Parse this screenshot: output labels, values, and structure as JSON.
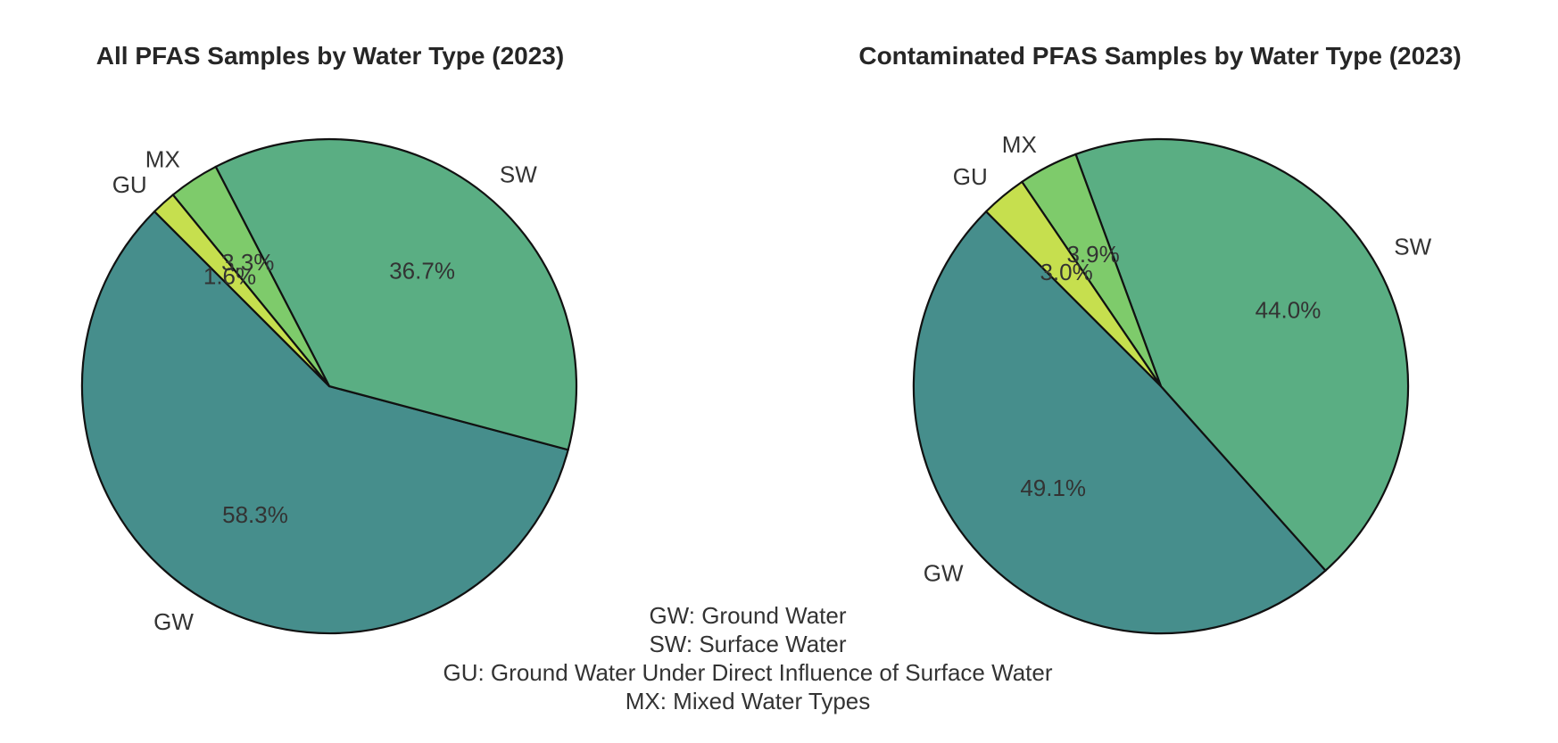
{
  "chart_data": [
    {
      "type": "pie",
      "title": "All PFAS Samples by Water Type (2023)",
      "start_angle": 135,
      "slices": [
        {
          "label": "GW",
          "value": 58.3,
          "pct_label": "58.3%",
          "color": "#468e8c"
        },
        {
          "label": "SW",
          "value": 36.7,
          "pct_label": "36.7%",
          "color": "#5aae83"
        },
        {
          "label": "MX",
          "value": 3.3,
          "pct_label": "3.3%",
          "color": "#7ecb6b"
        },
        {
          "label": "GU",
          "value": 1.6,
          "pct_label": "1.6%",
          "color": "#c6df4e"
        }
      ]
    },
    {
      "type": "pie",
      "title": "Contaminated PFAS Samples by Water Type (2023)",
      "start_angle": 135,
      "slices": [
        {
          "label": "GW",
          "value": 49.1,
          "pct_label": "49.1%",
          "color": "#468e8c"
        },
        {
          "label": "SW",
          "value": 44.0,
          "pct_label": "44.0%",
          "color": "#5aae83"
        },
        {
          "label": "MX",
          "value": 3.9,
          "pct_label": "3.9%",
          "color": "#7ecb6b"
        },
        {
          "label": "GU",
          "value": 3.0,
          "pct_label": "3.0%",
          "color": "#c6df4e"
        }
      ]
    }
  ],
  "legend_note": {
    "lines": [
      "GW: Ground Water",
      "SW: Surface Water",
      "GU: Ground Water Under Direct Influence of Surface Water",
      "MX: Mixed Water Types"
    ]
  }
}
